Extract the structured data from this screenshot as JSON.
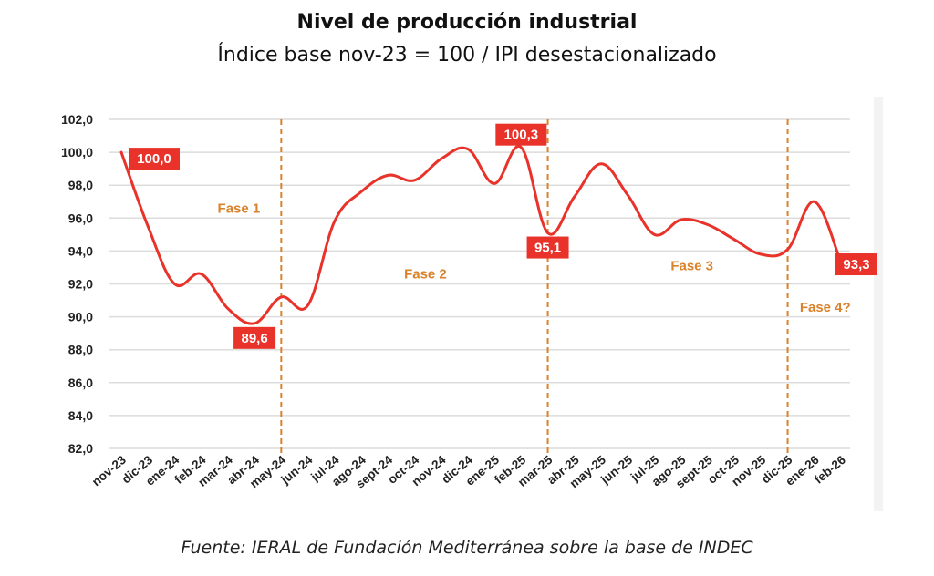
{
  "chart_data": {
    "type": "line",
    "title": "Nivel de producción industrial",
    "subtitle": "Índice base nov-23 = 100 / IPI desestacionalizado",
    "source": "Fuente: IERAL de Fundación Mediterránea sobre la base de INDEC",
    "xlabel": "",
    "ylabel": "",
    "ylim": [
      82,
      102
    ],
    "yticks": [
      "102,0",
      "100,0",
      "98,0",
      "96,0",
      "94,0",
      "92,0",
      "90,0",
      "88,0",
      "86,0",
      "84,0",
      "82,0"
    ],
    "ytick_values": [
      102,
      100,
      98,
      96,
      94,
      92,
      90,
      88,
      86,
      84,
      82
    ],
    "grid": true,
    "categories": [
      "nov-23",
      "dic-23",
      "ene-24",
      "feb-24",
      "mar-24",
      "abr-24",
      "may-24",
      "jun-24",
      "jul-24",
      "ago-24",
      "sept-24",
      "oct-24",
      "nov-24",
      "dic-24",
      "ene-25",
      "feb-25",
      "mar-25",
      "abr-25",
      "may-25",
      "jun-25",
      "jul-25",
      "ago-25",
      "sept-25",
      "oct-25",
      "nov-25",
      "dic-25",
      "ene-26",
      "feb-26"
    ],
    "series": [
      {
        "name": "IPI desestacionalizado",
        "color": "#e8322a",
        "values": [
          100.0,
          95.5,
          92.0,
          92.6,
          90.5,
          89.6,
          91.2,
          90.7,
          95.8,
          97.6,
          98.6,
          98.3,
          99.6,
          100.2,
          98.1,
          100.3,
          95.1,
          97.3,
          99.3,
          97.4,
          95.0,
          95.9,
          95.6,
          94.7,
          93.8,
          94.1,
          97.0,
          93.3
        ]
      }
    ],
    "data_labels": [
      {
        "category": "nov-23",
        "text": "100,0",
        "value": 100.0,
        "position": "right"
      },
      {
        "category": "abr-24",
        "text": "89,6",
        "value": 89.6,
        "position": "below"
      },
      {
        "category": "feb-25",
        "text": "100,3",
        "value": 100.3,
        "position": "above"
      },
      {
        "category": "mar-25",
        "text": "95,1",
        "value": 95.1,
        "position": "below"
      },
      {
        "category": "feb-26",
        "text": "93,3",
        "value": 93.3,
        "position": "right"
      }
    ],
    "phase_dividers": [
      "may-24",
      "mar-25",
      "dic-25"
    ],
    "phases": [
      {
        "label": "Fase 1",
        "category": "mar-24",
        "y_value": 96.6
      },
      {
        "label": "Fase 2",
        "category": "oct-24",
        "y_value": 92.6
      },
      {
        "label": "Fase 3",
        "category": "ago-25",
        "y_value": 93.1
      },
      {
        "label": "Fase 4?",
        "category": "ene-26",
        "y_value": 90.6
      }
    ],
    "colors": {
      "line": "#e8322a",
      "label_bg": "#e8322a",
      "divider": "#d9822b",
      "phase_text": "#d9822b",
      "grid": "#dcdcdc"
    }
  }
}
